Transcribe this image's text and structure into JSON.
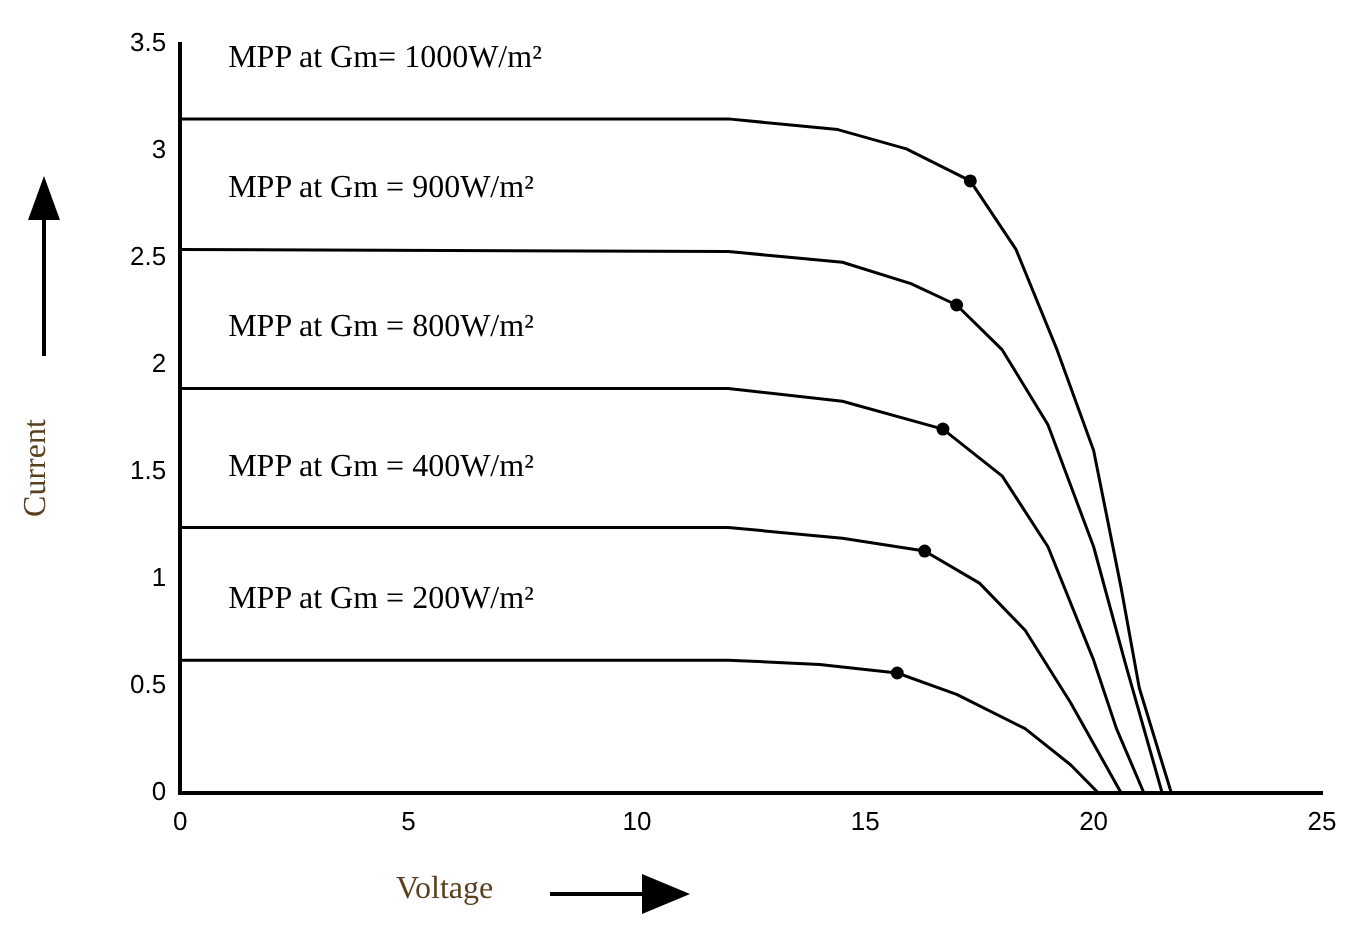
{
  "chart_data": {
    "type": "line",
    "xlabel": "Voltage",
    "ylabel": "Current",
    "xlim": [
      0,
      25
    ],
    "xticks": [
      0,
      5,
      10,
      15,
      20,
      25
    ],
    "ylim": [
      0,
      3.5
    ],
    "yticks": [
      0,
      0.5,
      1,
      1.5,
      2,
      2.5,
      3,
      3.5
    ],
    "grid": false,
    "legend": false,
    "series": [
      {
        "name": "MPP at Gm= 1000W/m²",
        "color": "#000000",
        "x": [
          0,
          12,
          14.4,
          15.9,
          17.3,
          18.3,
          19.2,
          20,
          20.6,
          21,
          21.7
        ],
        "values": [
          3.15,
          3.15,
          3.1,
          3.01,
          2.86,
          2.54,
          2.07,
          1.6,
          0.96,
          0.49,
          0
        ]
      },
      {
        "name": "MPP at Gm = 900W/m²",
        "color": "#000000",
        "x": [
          0,
          12,
          14.5,
          16,
          17,
          18,
          19,
          20,
          20.7,
          21.5
        ],
        "values": [
          2.54,
          2.53,
          2.48,
          2.38,
          2.28,
          2.07,
          1.72,
          1.15,
          0.6,
          0
        ]
      },
      {
        "name": "MPP at Gm = 800W/m²",
        "color": "#000000",
        "x": [
          0,
          12,
          14.5,
          16.7,
          18,
          19,
          20,
          20.5,
          21.1
        ],
        "values": [
          1.89,
          1.89,
          1.83,
          1.7,
          1.48,
          1.15,
          0.62,
          0.3,
          0
        ]
      },
      {
        "name": "MPP at Gm = 400W/m²",
        "color": "#000000",
        "x": [
          0,
          12,
          14.5,
          16.3,
          17.5,
          18.5,
          19.5,
          20.6
        ],
        "values": [
          1.24,
          1.24,
          1.19,
          1.13,
          0.98,
          0.76,
          0.42,
          0
        ]
      },
      {
        "name": "MPP at Gm = 200W/m²",
        "color": "#000000",
        "x": [
          0,
          12,
          14,
          15.7,
          17,
          18.5,
          19.5,
          20.1
        ],
        "values": [
          0.62,
          0.62,
          0.6,
          0.56,
          0.46,
          0.3,
          0.13,
          0
        ]
      },
      {
        "type": "scatter",
        "marker": "circle",
        "color": "#000000",
        "x": [
          17.3,
          17,
          16.7,
          16.3,
          15.7
        ],
        "values": [
          2.86,
          2.28,
          1.7,
          1.13,
          0.56
        ]
      }
    ]
  }
}
